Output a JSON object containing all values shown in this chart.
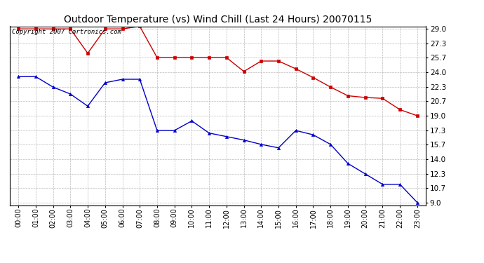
{
  "title": "Outdoor Temperature (vs) Wind Chill (Last 24 Hours) 20070115",
  "copyright_text": "Copyright 2007 Cartronics.com",
  "x_labels": [
    "00:00",
    "01:00",
    "02:00",
    "03:00",
    "04:00",
    "05:00",
    "06:00",
    "07:00",
    "08:00",
    "09:00",
    "10:00",
    "11:00",
    "12:00",
    "13:00",
    "14:00",
    "15:00",
    "16:00",
    "17:00",
    "18:00",
    "19:00",
    "20:00",
    "21:00",
    "22:00",
    "23:00"
  ],
  "temp_data": [
    23.5,
    23.5,
    22.3,
    21.5,
    20.1,
    22.8,
    23.2,
    23.2,
    17.3,
    17.3,
    18.4,
    17.0,
    16.6,
    16.2,
    15.7,
    15.3,
    17.3,
    16.8,
    15.7,
    13.5,
    12.3,
    11.1,
    11.1,
    9.0
  ],
  "wind_chill_data": [
    29.0,
    29.0,
    29.0,
    29.0,
    26.2,
    29.0,
    29.0,
    29.3,
    25.7,
    25.7,
    25.7,
    25.7,
    25.7,
    24.1,
    25.3,
    25.3,
    24.4,
    23.4,
    22.3,
    21.3,
    21.1,
    21.0,
    19.7,
    19.0
  ],
  "temp_color": "#0000cc",
  "wind_chill_color": "#cc0000",
  "bg_color": "#ffffff",
  "grid_color": "#aaaaaa",
  "y_min": 9.0,
  "y_max": 29.0,
  "y_ticks": [
    9.0,
    10.7,
    12.3,
    14.0,
    15.7,
    17.3,
    19.0,
    20.7,
    22.3,
    24.0,
    25.7,
    27.3,
    29.0
  ],
  "title_fontsize": 10,
  "copyright_fontsize": 6.5,
  "marker_size": 3
}
